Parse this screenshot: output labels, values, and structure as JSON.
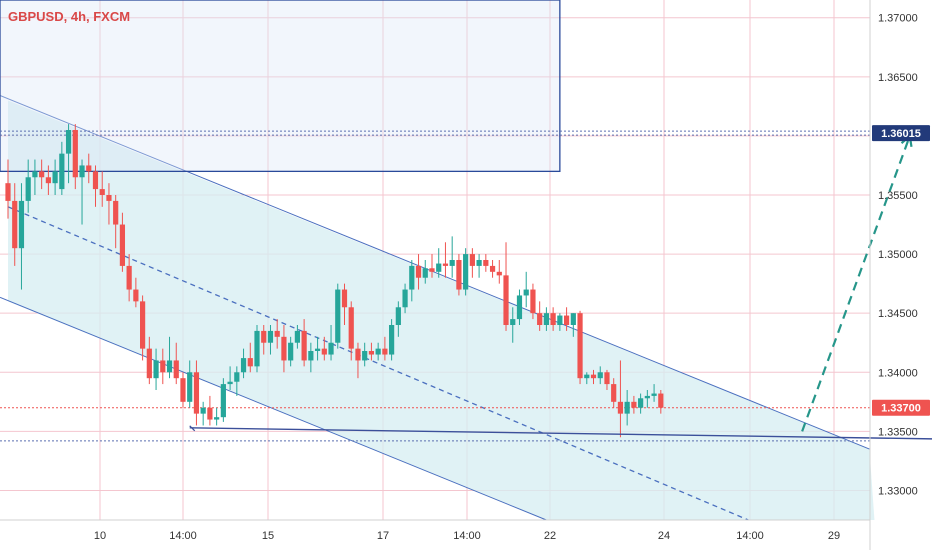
{
  "header": {
    "symbol_label": "GBPUSD, 4h, FXCM"
  },
  "colors": {
    "up": "#26a69a",
    "down": "#ef5350",
    "grid": "#f4c6cf",
    "channel_fill": "#d6eef2",
    "channel_line": "#4a6fbf",
    "box_line": "#2a4a9a",
    "dotted_blue": "#5b6fb0",
    "dotted_red": "#ef5350",
    "arrow": "#26968a",
    "badge_bg": "#223a7a",
    "badge_price_bg": "#ef5350"
  },
  "chart_data": {
    "type": "candlestick",
    "title": "",
    "ylim": [
      1.3275,
      1.3715
    ],
    "y_ticks": [
      "1.33000",
      "1.33500",
      "1.34000",
      "1.34500",
      "1.35000",
      "1.35500",
      "1.36000",
      "1.36500",
      "1.37000"
    ],
    "x_ticks": [
      "10",
      "14:00",
      "15",
      "17",
      "14:00",
      "22",
      "24",
      "14:00",
      "29"
    ],
    "price_badges": [
      {
        "label": "1.36015",
        "value": 1.36015,
        "style": "target"
      },
      {
        "label": "1.33700",
        "value": 1.337,
        "style": "current"
      }
    ],
    "ohlc": [
      [
        1.356,
        1.358,
        1.353,
        1.3545
      ],
      [
        1.3545,
        1.356,
        1.349,
        1.3505
      ],
      [
        1.3505,
        1.356,
        1.347,
        1.3545
      ],
      [
        1.3545,
        1.358,
        1.3535,
        1.3565
      ],
      [
        1.3565,
        1.358,
        1.355,
        1.357
      ],
      [
        1.357,
        1.358,
        1.3555,
        1.3565
      ],
      [
        1.3565,
        1.3575,
        1.355,
        1.356
      ],
      [
        1.356,
        1.358,
        1.355,
        1.357
      ],
      [
        1.3555,
        1.3595,
        1.355,
        1.3585
      ],
      [
        1.3585,
        1.361,
        1.356,
        1.3605
      ],
      [
        1.3605,
        1.361,
        1.3555,
        1.3565
      ],
      [
        1.3565,
        1.358,
        1.3525,
        1.3575
      ],
      [
        1.3575,
        1.3585,
        1.356,
        1.357
      ],
      [
        1.357,
        1.3575,
        1.354,
        1.3555
      ],
      [
        1.3555,
        1.357,
        1.354,
        1.355
      ],
      [
        1.355,
        1.356,
        1.3525,
        1.3545
      ],
      [
        1.3545,
        1.355,
        1.3505,
        1.3525
      ],
      [
        1.3525,
        1.3535,
        1.3485,
        1.349
      ],
      [
        1.349,
        1.35,
        1.346,
        1.347
      ],
      [
        1.347,
        1.348,
        1.3455,
        1.346
      ],
      [
        1.346,
        1.3465,
        1.341,
        1.342
      ],
      [
        1.342,
        1.343,
        1.339,
        1.3395
      ],
      [
        1.3395,
        1.342,
        1.3385,
        1.341
      ],
      [
        1.341,
        1.342,
        1.339,
        1.34
      ],
      [
        1.34,
        1.343,
        1.3395,
        1.341
      ],
      [
        1.341,
        1.3425,
        1.339,
        1.3395
      ],
      [
        1.3395,
        1.34,
        1.337,
        1.3375
      ],
      [
        1.3375,
        1.341,
        1.337,
        1.34
      ],
      [
        1.34,
        1.341,
        1.3355,
        1.3365
      ],
      [
        1.3365,
        1.3375,
        1.3355,
        1.337
      ],
      [
        1.337,
        1.338,
        1.3355,
        1.336
      ],
      [
        1.336,
        1.337,
        1.3355,
        1.3362
      ],
      [
        1.3362,
        1.3395,
        1.3358,
        1.339
      ],
      [
        1.339,
        1.3405,
        1.3385,
        1.3392
      ],
      [
        1.3392,
        1.3405,
        1.338,
        1.34
      ],
      [
        1.34,
        1.342,
        1.3395,
        1.3412
      ],
      [
        1.3412,
        1.3425,
        1.34,
        1.3405
      ],
      [
        1.3405,
        1.344,
        1.34,
        1.3435
      ],
      [
        1.3435,
        1.344,
        1.3415,
        1.3425
      ],
      [
        1.3425,
        1.344,
        1.3415,
        1.3435
      ],
      [
        1.3435,
        1.3445,
        1.342,
        1.343
      ],
      [
        1.343,
        1.344,
        1.34,
        1.341
      ],
      [
        1.341,
        1.343,
        1.3405,
        1.3425
      ],
      [
        1.3425,
        1.344,
        1.342,
        1.3435
      ],
      [
        1.3435,
        1.3445,
        1.3405,
        1.341
      ],
      [
        1.341,
        1.3425,
        1.34,
        1.3418
      ],
      [
        1.3418,
        1.343,
        1.341,
        1.342
      ],
      [
        1.342,
        1.343,
        1.341,
        1.3415
      ],
      [
        1.3415,
        1.344,
        1.341,
        1.3425
      ],
      [
        1.3425,
        1.3475,
        1.342,
        1.347
      ],
      [
        1.347,
        1.3475,
        1.344,
        1.3455
      ],
      [
        1.3455,
        1.346,
        1.341,
        1.342
      ],
      [
        1.342,
        1.3425,
        1.3395,
        1.341
      ],
      [
        1.341,
        1.3425,
        1.3405,
        1.3418
      ],
      [
        1.3418,
        1.3425,
        1.341,
        1.3415
      ],
      [
        1.3415,
        1.3425,
        1.341,
        1.342
      ],
      [
        1.342,
        1.343,
        1.341,
        1.3415
      ],
      [
        1.3415,
        1.3445,
        1.341,
        1.344
      ],
      [
        1.344,
        1.346,
        1.343,
        1.3455
      ],
      [
        1.3455,
        1.3475,
        1.345,
        1.347
      ],
      [
        1.347,
        1.3495,
        1.346,
        1.349
      ],
      [
        1.349,
        1.35,
        1.347,
        1.348
      ],
      [
        1.348,
        1.3495,
        1.3475,
        1.3488
      ],
      [
        1.3488,
        1.35,
        1.348,
        1.3485
      ],
      [
        1.3485,
        1.3505,
        1.348,
        1.3492
      ],
      [
        1.3492,
        1.351,
        1.348,
        1.349
      ],
      [
        1.349,
        1.3515,
        1.348,
        1.3495
      ],
      [
        1.3495,
        1.35,
        1.3465,
        1.347
      ],
      [
        1.347,
        1.3505,
        1.3465,
        1.35
      ],
      [
        1.35,
        1.3505,
        1.348,
        1.349
      ],
      [
        1.349,
        1.35,
        1.348,
        1.3495
      ],
      [
        1.3495,
        1.35,
        1.3485,
        1.349
      ],
      [
        1.349,
        1.3495,
        1.348,
        1.3485
      ],
      [
        1.3485,
        1.3495,
        1.3475,
        1.3482
      ],
      [
        1.3482,
        1.351,
        1.3435,
        1.344
      ],
      [
        1.344,
        1.3455,
        1.3425,
        1.3445
      ],
      [
        1.3445,
        1.347,
        1.344,
        1.3465
      ],
      [
        1.3465,
        1.3485,
        1.3455,
        1.347
      ],
      [
        1.347,
        1.3475,
        1.3445,
        1.345
      ],
      [
        1.345,
        1.346,
        1.3435,
        1.344
      ],
      [
        1.344,
        1.3455,
        1.3435,
        1.345
      ],
      [
        1.345,
        1.3455,
        1.3435,
        1.344
      ],
      [
        1.344,
        1.345,
        1.3435,
        1.3448
      ],
      [
        1.3448,
        1.3455,
        1.3435,
        1.344
      ],
      [
        1.344,
        1.345,
        1.343,
        1.345
      ],
      [
        1.345,
        1.3452,
        1.339,
        1.3395
      ],
      [
        1.3395,
        1.34,
        1.339,
        1.3398
      ],
      [
        1.3398,
        1.3402,
        1.339,
        1.3395
      ],
      [
        1.3395,
        1.3405,
        1.339,
        1.34
      ],
      [
        1.34,
        1.3402,
        1.3385,
        1.339
      ],
      [
        1.339,
        1.3395,
        1.337,
        1.3375
      ],
      [
        1.3375,
        1.341,
        1.3345,
        1.3365
      ],
      [
        1.3365,
        1.3385,
        1.3355,
        1.3375
      ],
      [
        1.3375,
        1.338,
        1.3365,
        1.337
      ],
      [
        1.337,
        1.3382,
        1.3365,
        1.3378
      ],
      [
        1.3378,
        1.3385,
        1.337,
        1.338
      ],
      [
        1.338,
        1.339,
        1.3375,
        1.3382
      ],
      [
        1.3382,
        1.3385,
        1.3365,
        1.337
      ]
    ],
    "drawings": {
      "channel_upper": [
        [
          0,
          1.363
        ],
        [
          128,
          1.3335
        ]
      ],
      "channel_mid": [
        [
          0,
          1.354
        ],
        [
          110,
          1.3275
        ]
      ],
      "channel_lower": [
        [
          0,
          1.346
        ],
        [
          80,
          1.3275
        ]
      ],
      "support": [
        [
          27,
          1.3353
        ],
        [
          145,
          1.3343
        ]
      ],
      "box": {
        "x0": 0,
        "x1": 82,
        "y_top": 1.3715,
        "y_bottom": 1.357
      },
      "target_arrow": [
        [
          118,
          1.335
        ],
        [
          134,
          1.36
        ]
      ]
    }
  }
}
